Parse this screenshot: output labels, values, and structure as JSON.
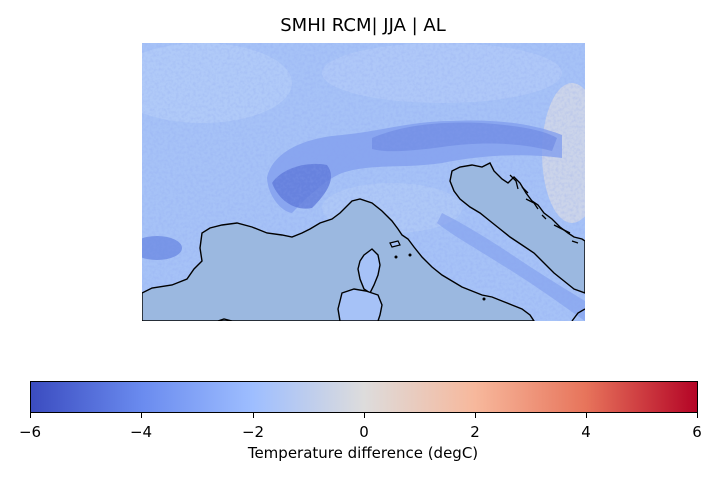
{
  "title": "SMHI RCM| JJA | AL",
  "map": {
    "sea_color": "#9bb8e0",
    "coastline_color": "#000000",
    "land_field": "temperature difference, mostly -3 to -1 degC, strongest cooling (-5 to -4 degC) over the Alps arc, near 0 degC in the far east"
  },
  "colorbar": {
    "label": "Temperature difference (degC)",
    "colormap": "coolwarm",
    "min": -6,
    "max": 6,
    "ticks": [
      "−6",
      "−4",
      "−2",
      "0",
      "2",
      "4",
      "6"
    ],
    "colors": [
      "#3b4cc0",
      "#6a8bef",
      "#9ebeff",
      "#dddcdc",
      "#f7b89c",
      "#e7745b",
      "#b40426"
    ]
  }
}
